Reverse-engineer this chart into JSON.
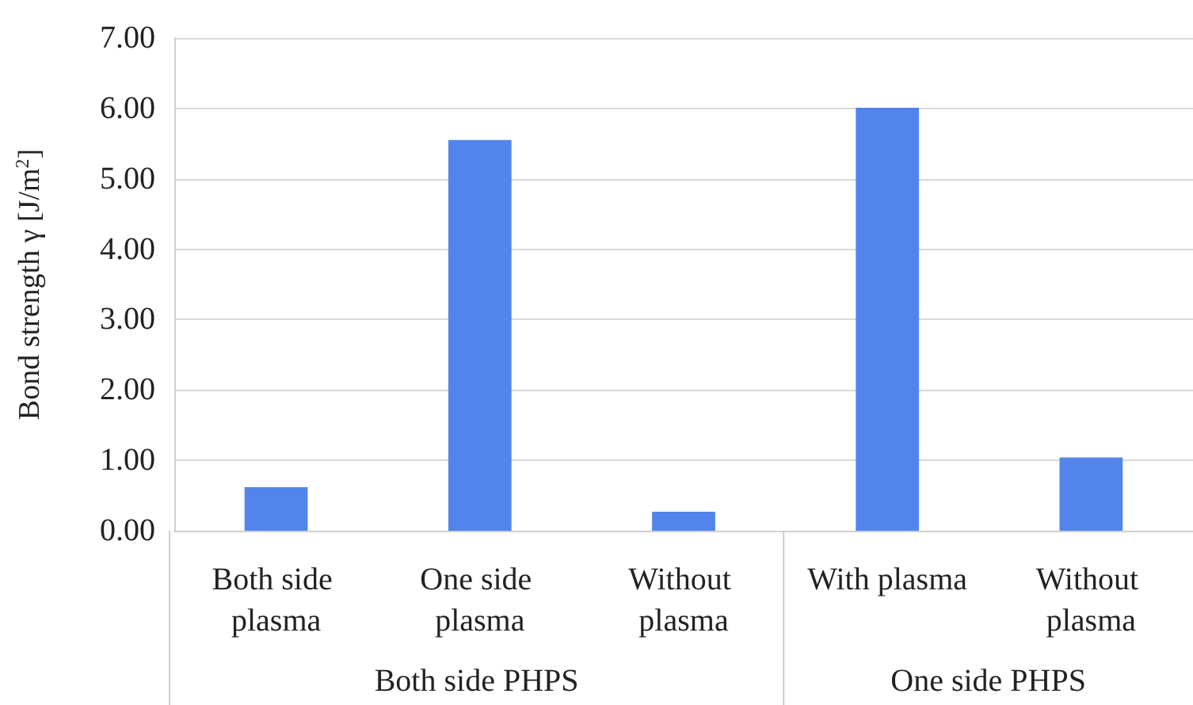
{
  "chart_data": {
    "type": "bar",
    "ylabel": "Bond strength γ [J/m$^{2}$]",
    "categories": [
      "Both side plasma",
      "One side plasma",
      "Without plasma",
      "With plasma",
      "Without plasma"
    ],
    "values": [
      0.62,
      5.55,
      0.27,
      6.01,
      1.04
    ],
    "color": "#5384eb",
    "ylim": [
      0,
      7
    ],
    "yticks": [
      {
        "value": 0,
        "label": "0.00"
      },
      {
        "value": 1,
        "label": "1.00"
      },
      {
        "value": 2,
        "label": "2.00"
      },
      {
        "value": 3,
        "label": "3.00"
      },
      {
        "value": 4,
        "label": "4.00"
      },
      {
        "value": 5,
        "label": "5.00"
      },
      {
        "value": 6,
        "label": "6.00"
      },
      {
        "value": 7,
        "label": "7.00"
      }
    ],
    "grid": "y",
    "annotations": [
      "Both side PHPS",
      "One side PHPS"
    ]
  }
}
